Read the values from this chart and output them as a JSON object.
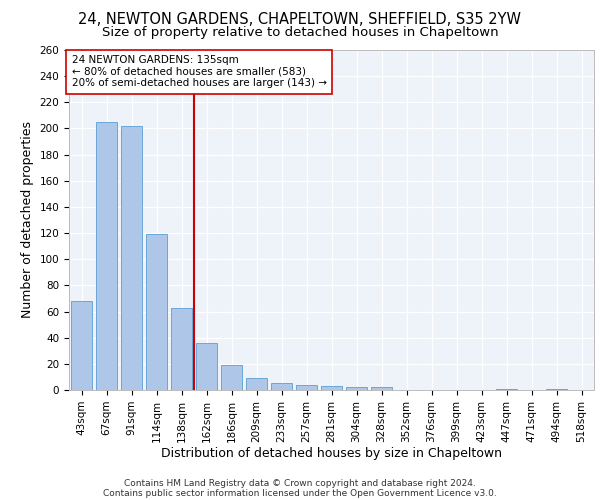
{
  "title_line1": "24, NEWTON GARDENS, CHAPELTOWN, SHEFFIELD, S35 2YW",
  "title_line2": "Size of property relative to detached houses in Chapeltown",
  "xlabel": "Distribution of detached houses by size in Chapeltown",
  "ylabel": "Number of detached properties",
  "categories": [
    "43sqm",
    "67sqm",
    "91sqm",
    "114sqm",
    "138sqm",
    "162sqm",
    "186sqm",
    "209sqm",
    "233sqm",
    "257sqm",
    "281sqm",
    "304sqm",
    "328sqm",
    "352sqm",
    "376sqm",
    "399sqm",
    "423sqm",
    "447sqm",
    "471sqm",
    "494sqm",
    "518sqm"
  ],
  "values": [
    68,
    205,
    202,
    119,
    63,
    36,
    19,
    9,
    5,
    4,
    3,
    2,
    2,
    0,
    0,
    0,
    0,
    1,
    0,
    1,
    0
  ],
  "bar_color": "#aec6e8",
  "bar_edge_color": "#5a9fd4",
  "vline_x": 4.5,
  "vline_color": "#cc0000",
  "annotation_text": "24 NEWTON GARDENS: 135sqm\n← 80% of detached houses are smaller (583)\n20% of semi-detached houses are larger (143) →",
  "annotation_box_color": "#ffffff",
  "annotation_box_edge": "#cc0000",
  "ylim": [
    0,
    260
  ],
  "yticks": [
    0,
    20,
    40,
    60,
    80,
    100,
    120,
    140,
    160,
    180,
    200,
    220,
    240,
    260
  ],
  "footer_line1": "Contains HM Land Registry data © Crown copyright and database right 2024.",
  "footer_line2": "Contains public sector information licensed under the Open Government Licence v3.0.",
  "background_color": "#eef2f9",
  "grid_color": "#ffffff",
  "title_fontsize": 10.5,
  "subtitle_fontsize": 9.5,
  "axis_label_fontsize": 9,
  "tick_fontsize": 7.5,
  "annotation_fontsize": 7.5,
  "footer_fontsize": 6.5
}
